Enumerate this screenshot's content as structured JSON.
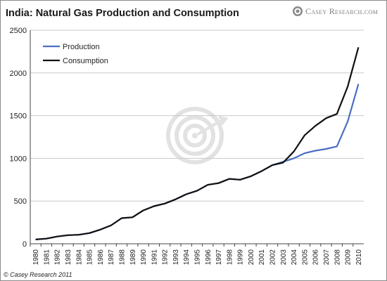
{
  "brand": {
    "name": "Casey Research.com",
    "logo_icon": "casey-research-logo-icon"
  },
  "copyright": "© Casey Research 2011",
  "chart_data": {
    "type": "line",
    "title": "India: Natural Gas Production and Consumption",
    "xlabel": "",
    "ylabel": "",
    "ylim": [
      0,
      2500
    ],
    "yticks": [
      0,
      500,
      1000,
      1500,
      2000,
      2500
    ],
    "grid": "horizontal",
    "legend_position": "top-left",
    "x": [
      "1980",
      "1981",
      "1982",
      "1983",
      "1984",
      "1985",
      "1986",
      "1987",
      "1988",
      "1989",
      "1990",
      "1991",
      "1992",
      "1993",
      "1994",
      "1995",
      "1996",
      "1997",
      "1998",
      "1999",
      "2000",
      "2001",
      "2002",
      "2003",
      "2004",
      "2005",
      "2006",
      "2007",
      "2008",
      "2009",
      "2010"
    ],
    "series": [
      {
        "name": "Production",
        "color": "#4a6fc2",
        "values": [
          50,
          60,
          85,
          100,
          105,
          125,
          165,
          215,
          300,
          310,
          390,
          440,
          470,
          520,
          580,
          620,
          690,
          710,
          760,
          750,
          790,
          850,
          920,
          960,
          1000,
          1060,
          1090,
          1110,
          1140,
          1430,
          1870
        ]
      },
      {
        "name": "Consumption",
        "color": "#111111",
        "values": [
          50,
          60,
          85,
          100,
          105,
          125,
          165,
          215,
          300,
          310,
          390,
          440,
          470,
          520,
          580,
          620,
          690,
          710,
          760,
          750,
          790,
          850,
          920,
          950,
          1080,
          1270,
          1380,
          1470,
          1520,
          1840,
          2300
        ]
      }
    ]
  }
}
